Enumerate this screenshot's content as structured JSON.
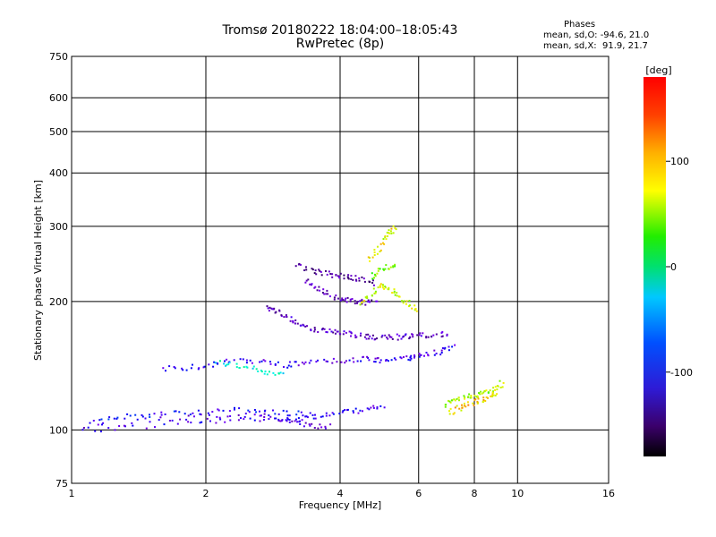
{
  "header": {
    "title": "Tromsø 20180222 18:04:00–18:05:43",
    "subtitle": "RwPretec (8p)"
  },
  "phase_info": {
    "title": "Phases",
    "o_line": "mean, sd,O: -94.6, 21.0",
    "x_line": "mean, sd,X:  91.9, 21.7"
  },
  "chart_data": {
    "type": "scatter",
    "xlabel": "Frequency [MHz]",
    "ylabel": "Stationary phase Virtual Height [km]",
    "xscale": "log",
    "yscale": "log",
    "xlim": [
      1,
      16
    ],
    "ylim": [
      75,
      750
    ],
    "xticks": [
      1,
      2,
      4,
      6,
      8,
      10,
      16
    ],
    "yticks": [
      75,
      100,
      200,
      300,
      400,
      500,
      600,
      750
    ],
    "grid": true,
    "colorbar": {
      "label": "[deg]",
      "range": [
        -180,
        180
      ],
      "ticks": [
        100,
        0,
        -100
      ],
      "colormap": "rainbow"
    },
    "series": [
      {
        "traces": [
          {
            "x": [
              1.05,
              1.8,
              2.4,
              3.0,
              3.5,
              4.0,
              4.5,
              5.0
            ],
            "y": [
              100,
              104,
              106,
              106,
              108,
              110,
              112,
              114
            ],
            "phase": -110
          },
          {
            "x": [
              1.05,
              1.5,
              2.0,
              2.6,
              3.0,
              3.4,
              3.8
            ],
            "y": [
              101,
              106,
              108,
              109,
              106,
              103,
              102
            ],
            "phase": -120
          },
          {
            "x": [
              1.1,
              1.3,
              1.6,
              2.0,
              2.5,
              3.0,
              3.5
            ],
            "y": [
              104,
              108,
              110,
              111,
              112,
              110,
              109
            ],
            "phase": -95
          }
        ]
      },
      {
        "traces": [
          {
            "x": [
              1.6,
              1.9,
              2.2,
              2.6,
              3.0,
              3.4,
              4.0,
              4.6,
              5.0,
              5.6,
              6.0,
              6.6,
              7.2
            ],
            "y": [
              140,
              141,
              145,
              146,
              142,
              145,
              146,
              147,
              146,
              148,
              150,
              153,
              159
            ],
            "phase": -110
          },
          {
            "x": [
              2.1,
              2.4,
              2.7,
              3.0
            ],
            "y": [
              145,
              141,
              138,
              135
            ],
            "phase": -15
          }
        ]
      },
      {
        "traces": [
          {
            "x": [
              2.7,
              2.9,
              3.1,
              3.3,
              3.6,
              3.9,
              4.2,
              4.6,
              5.0,
              5.4,
              5.8,
              6.4,
              7.0
            ],
            "y": [
              195,
              190,
              182,
              176,
              172,
              170,
              168,
              166,
              165,
              166,
              167,
              168,
              168
            ],
            "phase": -135
          },
          {
            "x": [
              3.3,
              3.6,
              3.9,
              4.2,
              4.5,
              4.8
            ],
            "y": [
              225,
              215,
              205,
              202,
              200,
              200
            ],
            "phase": -140
          },
          {
            "x": [
              3.2,
              3.5,
              3.8,
              4.1,
              4.4,
              4.8
            ],
            "y": [
              245,
              236,
              232,
              230,
              227,
              220
            ],
            "phase": -150
          }
        ]
      },
      {
        "traces": [
          {
            "x": [
              4.4,
              4.7,
              5.0,
              5.3,
              5.6,
              6.0
            ],
            "y": [
              200,
              210,
              220,
              210,
              200,
              190
            ],
            "phase": 100
          },
          {
            "x": [
              4.6,
              4.9,
              5.1,
              5.3
            ],
            "y": [
              250,
              270,
              290,
              300
            ],
            "phase": 110
          },
          {
            "x": [
              4.7,
              5.0,
              5.3
            ],
            "y": [
              230,
              240,
              245
            ],
            "phase": 75
          },
          {
            "x": [
              6.8,
              7.3,
              7.8,
              8.3,
              8.8,
              9.3
            ],
            "y": [
              115,
              118,
              121,
              122,
              125,
              130
            ],
            "phase": 90
          },
          {
            "x": [
              7.0,
              7.5,
              8.0,
              8.5,
              9.0
            ],
            "y": [
              110,
              114,
              117,
              119,
              123
            ],
            "phase": 120
          }
        ]
      }
    ]
  }
}
